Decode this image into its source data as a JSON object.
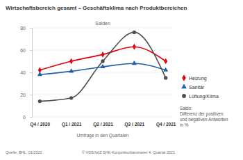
{
  "chart_data": {
    "type": "line",
    "title": "Wirtschaftsbereich gesamt – Geschäftsklima nach Produktbereichen",
    "y_label": "Salden",
    "x_label": "Umfrage in den Quartalen",
    "categories": [
      "Q4 / 2020",
      "Q1 / 2021",
      "Q2 / 2021",
      "Q3 / 2021",
      "Q4 / 2021"
    ],
    "series": [
      {
        "name": "Heizung",
        "color": "#e3000f",
        "marker": "diamond",
        "values": [
          42,
          50,
          56,
          63,
          50
        ]
      },
      {
        "name": "Sanitär",
        "color": "#1f5fad",
        "marker": "triangle",
        "values": [
          38,
          41,
          45,
          48,
          42
        ]
      },
      {
        "name": "Lüftung/Klima",
        "color": "#4d4d4d",
        "marker": "circle",
        "values": [
          14,
          17,
          50,
          76,
          35
        ]
      }
    ],
    "ylim": [
      0,
      80
    ],
    "yticks": [
      0,
      20,
      40,
      60,
      80
    ],
    "grid": true,
    "legend": "right",
    "annotations": [
      "Saldo:",
      "Differenz der positiven",
      "und negativen Antworten",
      "in %"
    ],
    "source": "Quelle: BHL, 01/2022",
    "copyright": "© VDS/VdZ SHK-Konjunkturbarometer 4. Quartal 2021"
  }
}
